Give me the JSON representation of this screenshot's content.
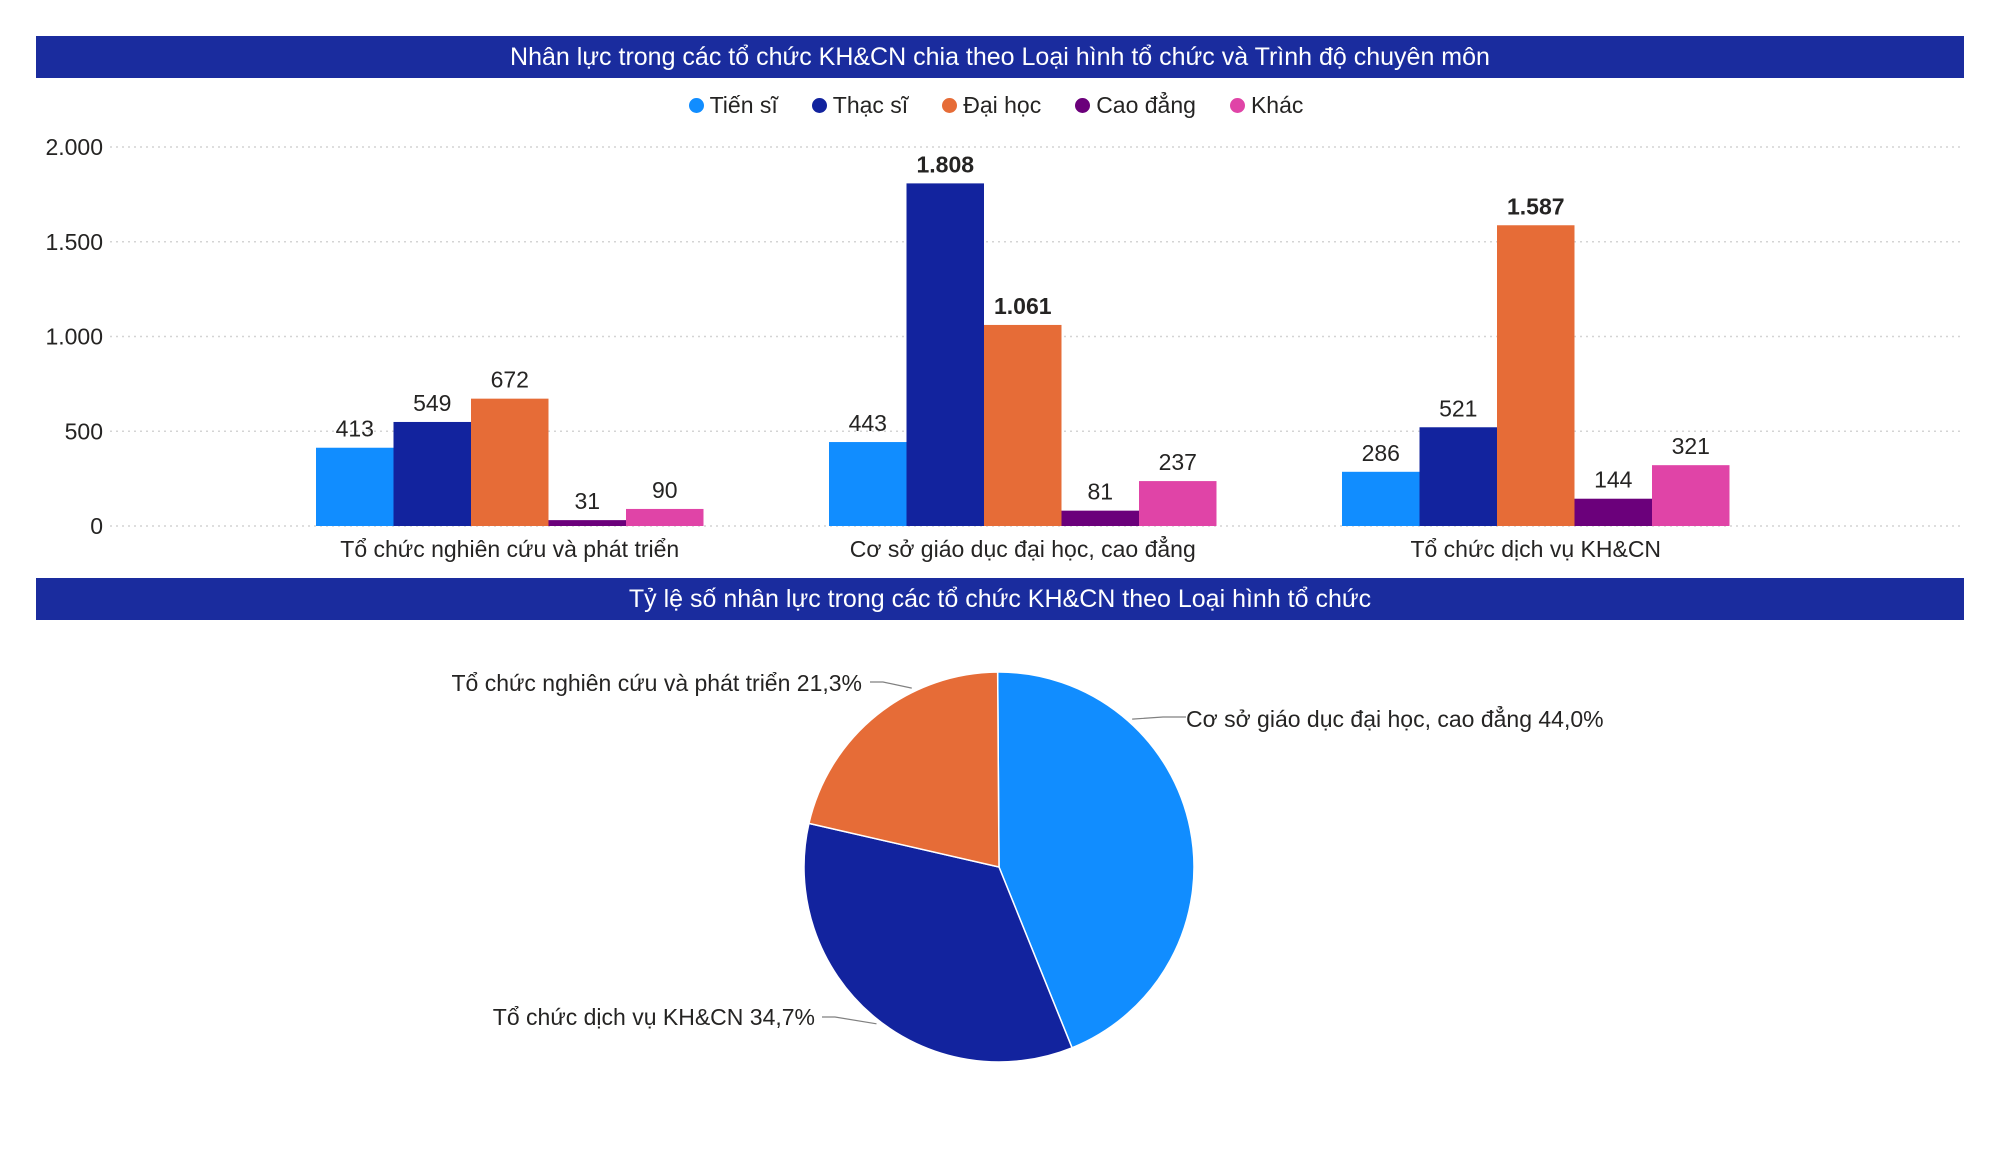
{
  "colors": {
    "banner_bg": "#1a2c9e",
    "tien_si": "#118dff",
    "thac_si": "#12239e",
    "dai_hoc": "#e66c37",
    "cao_dang": "#6b007b",
    "khac": "#e044a7"
  },
  "chart_data": [
    {
      "type": "bar",
      "title": "Nhân lực trong các tổ chức KH&CN chia theo Loại hình tổ chức và Trình độ chuyên môn",
      "categories": [
        "Tổ chức nghiên cứu và phát triển",
        "Cơ sở giáo dục đại học, cao đẳng",
        "Tổ chức dịch vụ KH&CN"
      ],
      "series": [
        {
          "name": "Tiến sĩ",
          "color": "#118dff",
          "values": [
            413,
            443,
            286
          ],
          "labels": [
            "413",
            "443",
            "286"
          ]
        },
        {
          "name": "Thạc sĩ",
          "color": "#12239e",
          "values": [
            549,
            1808,
            521
          ],
          "labels": [
            "549",
            "1.808",
            "521"
          ]
        },
        {
          "name": "Đại học",
          "color": "#e66c37",
          "values": [
            672,
            1061,
            1587
          ],
          "labels": [
            "672",
            "1.061",
            "1.587"
          ]
        },
        {
          "name": "Cao đẳng",
          "color": "#6b007b",
          "values": [
            31,
            81,
            144
          ],
          "labels": [
            "31",
            "81",
            "144"
          ]
        },
        {
          "name": "Khác",
          "color": "#e044a7",
          "values": [
            90,
            237,
            321
          ],
          "labels": [
            "90",
            "237",
            "321"
          ]
        }
      ],
      "yticks": [
        0,
        500,
        1000,
        1500,
        2000
      ],
      "ytick_labels": [
        "0",
        "500",
        "1.000",
        "1.500",
        "2.000"
      ],
      "ylim": [
        0,
        2000
      ],
      "grid": true,
      "legend": "top-center"
    },
    {
      "type": "pie",
      "title": "Tỷ lệ số nhân lực trong các tổ chức KH&CN theo Loại hình tổ chức",
      "slices": [
        {
          "label": "Cơ sở giáo dục đại học, cao đẳng",
          "value": 44.0,
          "display": "Cơ sở giáo dục đại học, cao đẳng 44,0%",
          "color": "#118dff"
        },
        {
          "label": "Tổ chức dịch vụ KH&CN",
          "value": 34.7,
          "display": "Tổ chức dịch vụ KH&CN 34,7%",
          "color": "#12239e"
        },
        {
          "label": "Tổ chức nghiên cứu và phát triển",
          "value": 21.3,
          "display": "Tổ chức nghiên cứu và phát triển 21,3%",
          "color": "#e66c37"
        }
      ]
    }
  ]
}
